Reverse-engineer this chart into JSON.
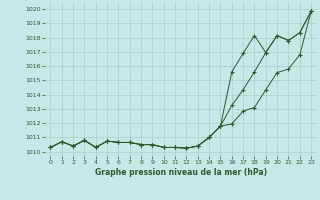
{
  "xlabel": "Graphe pression niveau de la mer (hPa)",
  "xlim": [
    -0.5,
    23.5
  ],
  "ylim": [
    1009.7,
    1020.5
  ],
  "yticks": [
    1010,
    1011,
    1012,
    1013,
    1014,
    1015,
    1016,
    1017,
    1018,
    1019,
    1020
  ],
  "xticks": [
    0,
    1,
    2,
    3,
    4,
    5,
    6,
    7,
    8,
    9,
    10,
    11,
    12,
    13,
    14,
    15,
    16,
    17,
    18,
    19,
    20,
    21,
    22,
    23
  ],
  "bg_color": "#c8e8e8",
  "grid_color": "#a8cece",
  "line_color": "#2d5a2d",
  "line1_y": [
    1010.3,
    1010.7,
    1010.4,
    1010.8,
    1010.3,
    1010.75,
    1010.65,
    1010.65,
    1010.5,
    1010.5,
    1010.3,
    1010.3,
    1010.25,
    1010.4,
    1011.0,
    1011.8,
    1011.95,
    1012.85,
    1013.1,
    1014.35,
    1015.55,
    1015.8,
    1016.8,
    1019.85
  ],
  "line2_y": [
    1010.3,
    1010.7,
    1010.4,
    1010.8,
    1010.3,
    1010.75,
    1010.65,
    1010.65,
    1010.5,
    1010.5,
    1010.3,
    1010.3,
    1010.25,
    1010.4,
    1011.0,
    1011.8,
    1015.6,
    1016.9,
    1018.15,
    1016.95,
    1018.15,
    1017.8,
    1018.35,
    1019.85
  ],
  "line3_y": [
    1010.3,
    1010.7,
    1010.4,
    1010.8,
    1010.3,
    1010.75,
    1010.65,
    1010.65,
    1010.5,
    1010.5,
    1010.3,
    1010.3,
    1010.25,
    1010.4,
    1011.0,
    1011.8,
    1013.25,
    1014.35,
    1015.6,
    1016.95,
    1018.15,
    1017.8,
    1018.35,
    1019.85
  ],
  "marker": "+",
  "markersize": 3,
  "markeredgewidth": 0.8,
  "linewidth": 0.7
}
